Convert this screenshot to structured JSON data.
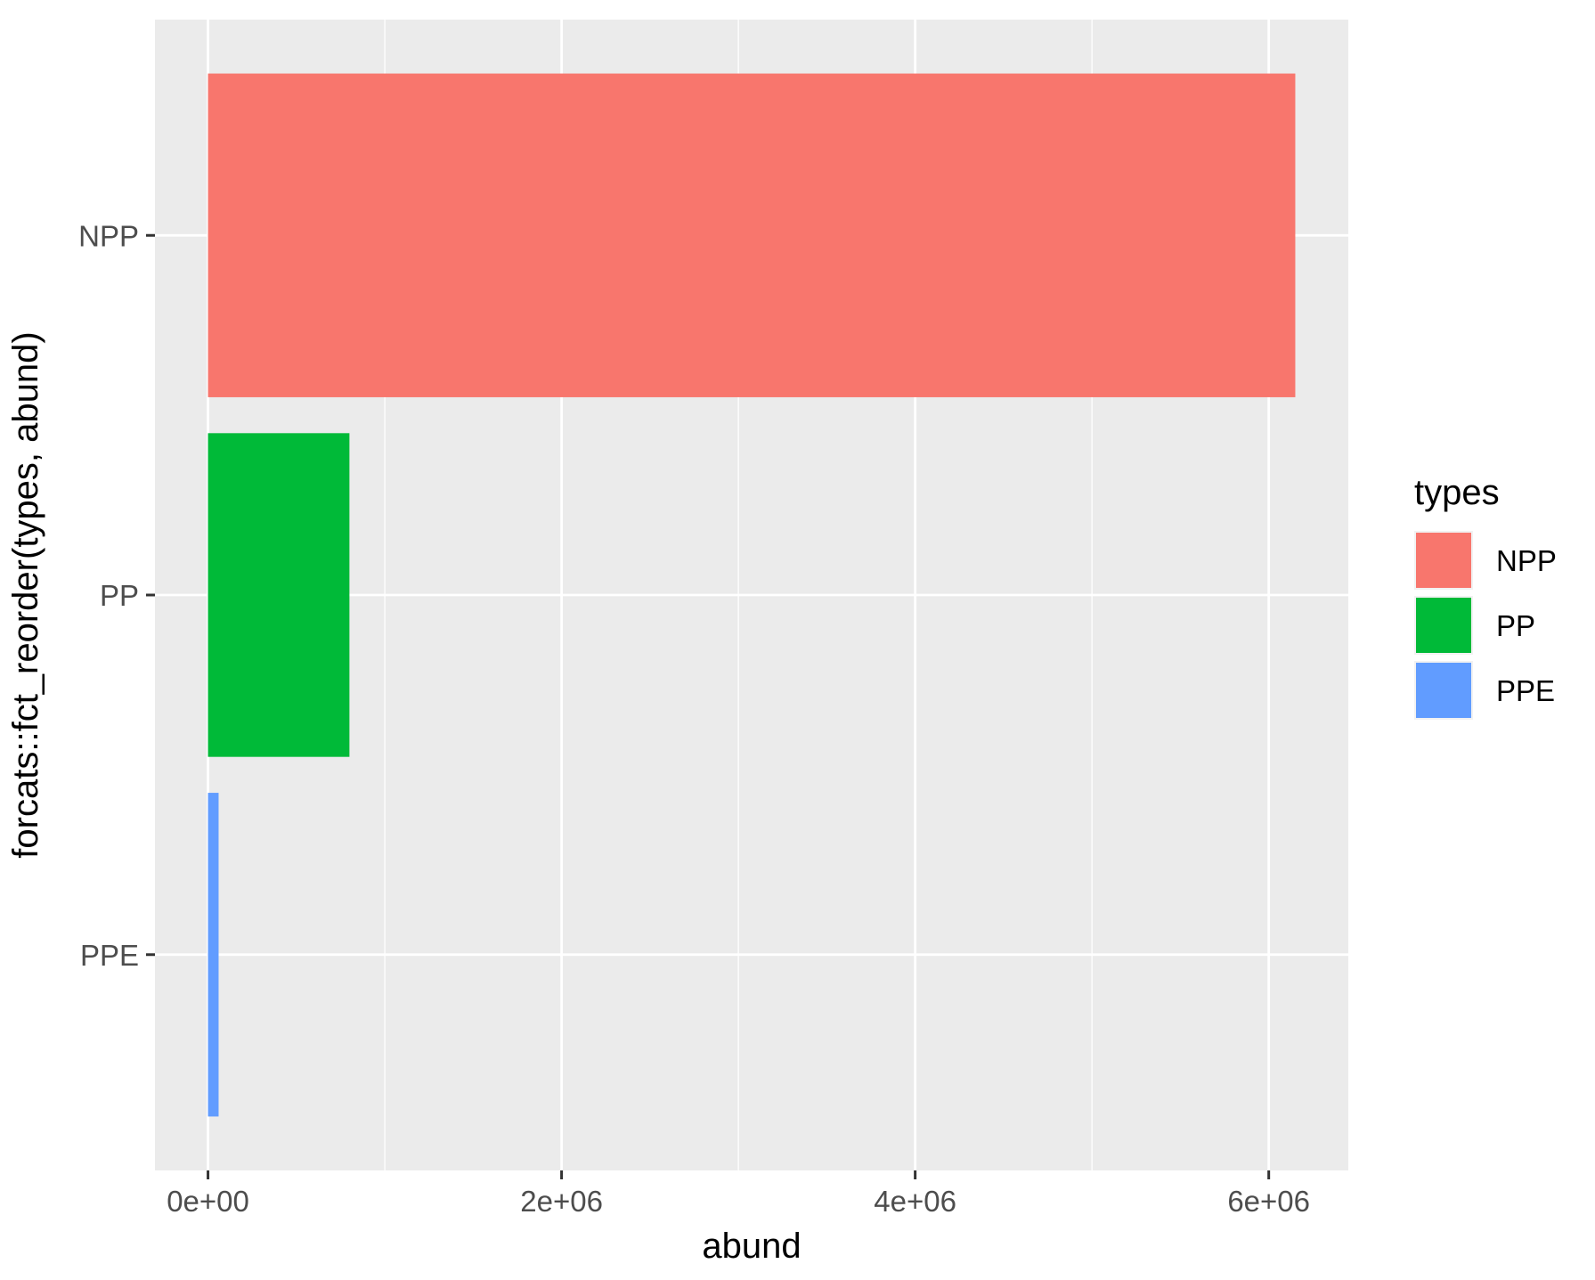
{
  "chart_data": {
    "type": "bar",
    "orientation": "horizontal",
    "categories": [
      "PPE",
      "PP",
      "NPP"
    ],
    "values": [
      60000,
      800000,
      6150000
    ],
    "colors": {
      "NPP": "#F8766D",
      "PP": "#00BA38",
      "PPE": "#619CFF"
    },
    "xlabel": "abund",
    "ylabel": "forcats::fct_reorder(types, abund)",
    "xlim": [
      -300000,
      6450000
    ],
    "xticks": [
      0,
      2000000,
      4000000,
      6000000
    ],
    "xtick_labels": [
      "0e+00",
      "2e+06",
      "4e+06",
      "6e+06"
    ],
    "x_minor_ticks": [
      1000000,
      3000000,
      5000000
    ],
    "grid": true,
    "panel_background": "#EBEBEB",
    "grid_color": "#FFFFFF",
    "legend": {
      "title": "types",
      "position": "right",
      "entries": [
        "NPP",
        "PP",
        "PPE"
      ]
    }
  }
}
